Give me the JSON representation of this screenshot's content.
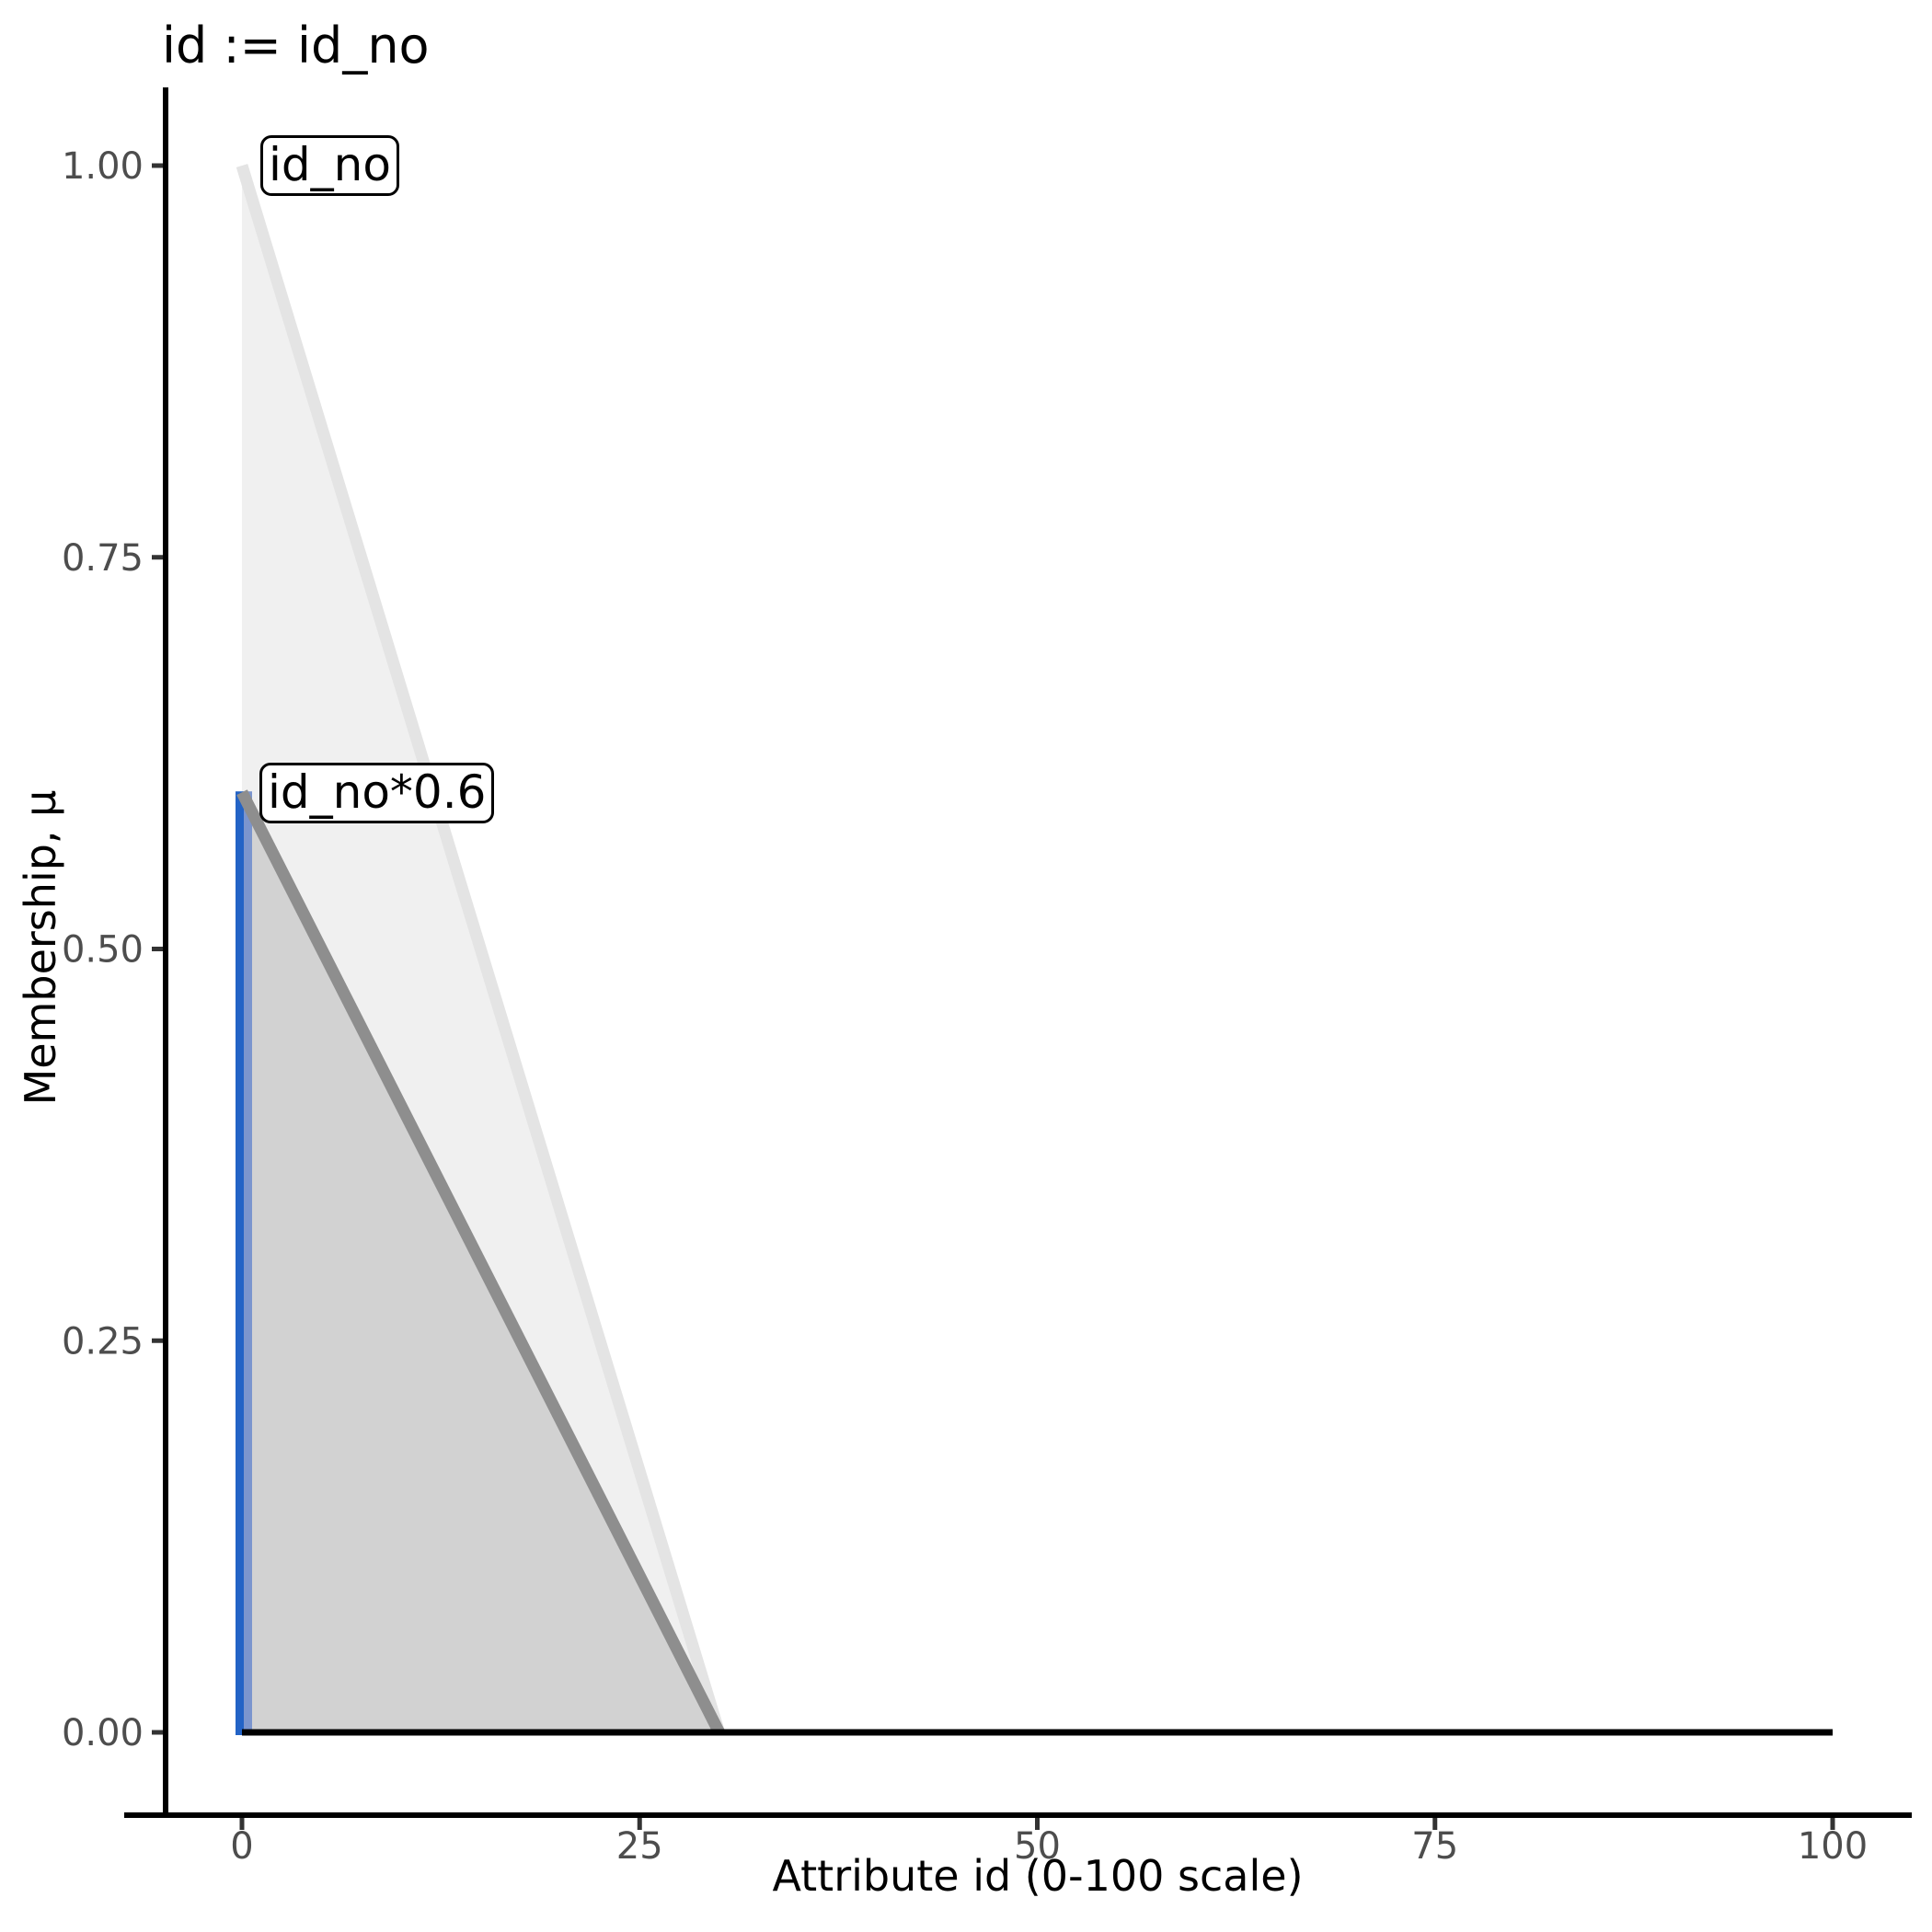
{
  "chart_data": {
    "type": "area",
    "title": "id := id_no",
    "xlabel": "Attribute id (0-100 scale)",
    "ylabel": "Membership, μ",
    "xlim": [
      0,
      100
    ],
    "ylim": [
      0,
      1
    ],
    "grid": false,
    "legend": "none",
    "x_ticks": [
      {
        "value": 0,
        "label": "0"
      },
      {
        "value": 25,
        "label": "25"
      },
      {
        "value": 50,
        "label": "50"
      },
      {
        "value": 75,
        "label": "75"
      },
      {
        "value": 100,
        "label": "100"
      }
    ],
    "y_ticks": [
      {
        "value": 0.0,
        "label": "0.00"
      },
      {
        "value": 0.25,
        "label": "0.25"
      },
      {
        "value": 0.5,
        "label": "0.50"
      },
      {
        "value": 0.75,
        "label": "0.75"
      },
      {
        "value": 1.0,
        "label": "1.00"
      }
    ],
    "series": [
      {
        "name": "id_no",
        "description": "triangular fuzzy membership function, peak 1.0 at x=0, reaching 0 at x=30",
        "polygon": [
          [
            0,
            0
          ],
          [
            0,
            1
          ],
          [
            30,
            0
          ]
        ],
        "edge_line": [
          [
            0,
            1
          ],
          [
            30,
            0
          ]
        ],
        "fill": "#f0f0f0",
        "edge_color": "#e4e4e4"
      },
      {
        "name": "id_no*0.6",
        "description": "scaled membership function, peak 0.6 at x=0, reaching 0 at x=30",
        "polygon": [
          [
            0,
            0
          ],
          [
            0,
            0.6
          ],
          [
            30,
            0
          ]
        ],
        "edge_line": [
          [
            0,
            0.6
          ],
          [
            30,
            0
          ]
        ],
        "fill": "#d2d2d2",
        "edge_color": "#8e8e8e"
      }
    ],
    "marker_line": {
      "x": 0,
      "y0": 0,
      "y1": 0.6,
      "color": "#2363c6",
      "color_overlap": "#7b95ce"
    },
    "baseline": {
      "y": 0,
      "x0": 0,
      "x1": 100,
      "color": "#000000"
    },
    "annotations": [
      {
        "text": "id_no",
        "anchor_x": 0,
        "anchor_y": 1.0
      },
      {
        "text": "id_no*0.6",
        "anchor_x": 0,
        "anchor_y": 0.6
      }
    ],
    "style": {
      "axis_line_color": "#000000",
      "tick_mark_color": "#333333",
      "tick_label_color": "#4d4d4d",
      "background": "#ffffff"
    }
  }
}
